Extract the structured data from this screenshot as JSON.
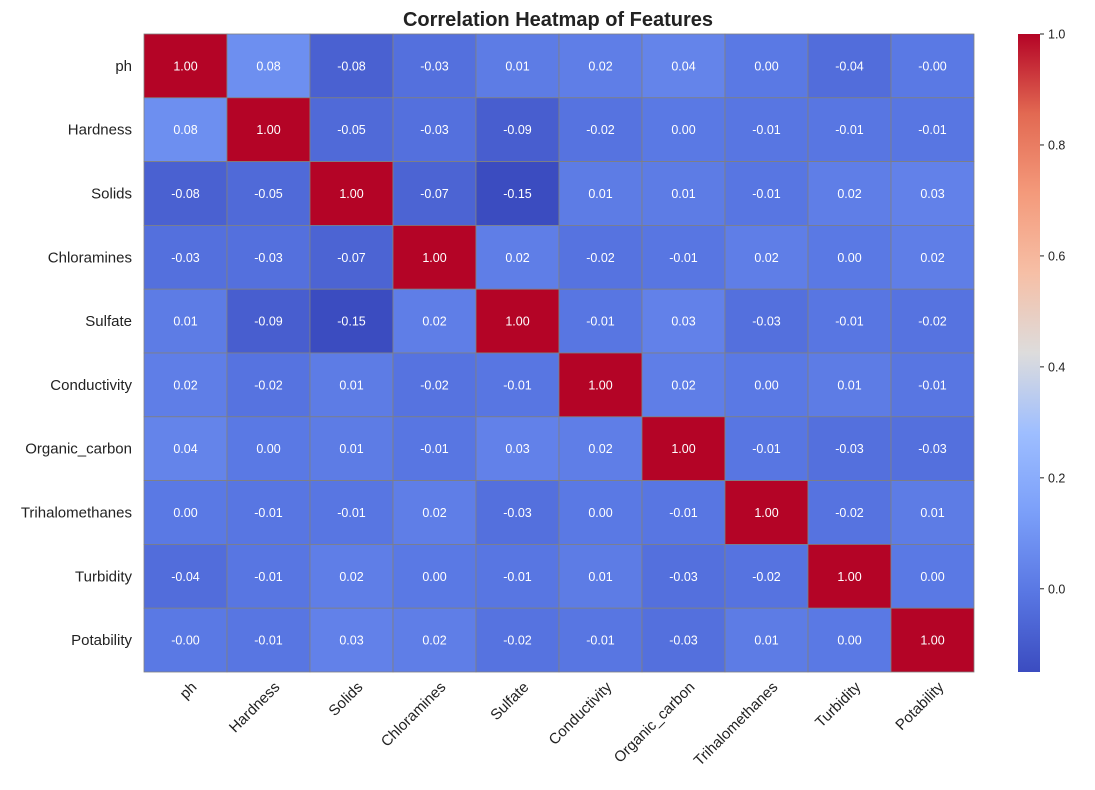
{
  "chart_data": {
    "type": "heatmap",
    "title": "Correlation Heatmap of Features",
    "rows": [
      "ph",
      "Hardness",
      "Solids",
      "Chloramines",
      "Sulfate",
      "Conductivity",
      "Organic_carbon",
      "Trihalomethanes",
      "Turbidity",
      "Potability"
    ],
    "columns": [
      "ph",
      "Hardness",
      "Solids",
      "Chloramines",
      "Sulfate",
      "Conductivity",
      "Organic_carbon",
      "Trihalomethanes",
      "Turbidity",
      "Potability"
    ],
    "values": [
      [
        1.0,
        0.08,
        -0.08,
        -0.03,
        0.01,
        0.02,
        0.04,
        0.0,
        -0.04,
        -0.0
      ],
      [
        0.08,
        1.0,
        -0.05,
        -0.03,
        -0.09,
        -0.02,
        0.0,
        -0.01,
        -0.01,
        -0.01
      ],
      [
        -0.08,
        -0.05,
        1.0,
        -0.07,
        -0.15,
        0.01,
        0.01,
        -0.01,
        0.02,
        0.03
      ],
      [
        -0.03,
        -0.03,
        -0.07,
        1.0,
        0.02,
        -0.02,
        -0.01,
        0.02,
        0.0,
        0.02
      ],
      [
        0.01,
        -0.09,
        -0.15,
        0.02,
        1.0,
        -0.01,
        0.03,
        -0.03,
        -0.01,
        -0.02
      ],
      [
        0.02,
        -0.02,
        0.01,
        -0.02,
        -0.01,
        1.0,
        0.02,
        0.0,
        0.01,
        -0.01
      ],
      [
        0.04,
        0.0,
        0.01,
        -0.01,
        0.03,
        0.02,
        1.0,
        -0.01,
        -0.03,
        -0.03
      ],
      [
        0.0,
        -0.01,
        -0.01,
        0.02,
        -0.03,
        0.0,
        -0.01,
        1.0,
        -0.02,
        0.01
      ],
      [
        -0.04,
        -0.01,
        0.02,
        0.0,
        -0.01,
        0.01,
        -0.03,
        -0.02,
        1.0,
        0.0
      ],
      [
        -0.0,
        -0.01,
        0.03,
        0.02,
        -0.02,
        -0.01,
        -0.03,
        0.01,
        0.0,
        1.0
      ]
    ],
    "value_labels": [
      [
        "1.00",
        "0.08",
        "-0.08",
        "-0.03",
        "0.01",
        "0.02",
        "0.04",
        "0.00",
        "-0.04",
        "-0.00"
      ],
      [
        "0.08",
        "1.00",
        "-0.05",
        "-0.03",
        "-0.09",
        "-0.02",
        "0.00",
        "-0.01",
        "-0.01",
        "-0.01"
      ],
      [
        "-0.08",
        "-0.05",
        "1.00",
        "-0.07",
        "-0.15",
        "0.01",
        "0.01",
        "-0.01",
        "0.02",
        "0.03"
      ],
      [
        "-0.03",
        "-0.03",
        "-0.07",
        "1.00",
        "0.02",
        "-0.02",
        "-0.01",
        "0.02",
        "0.00",
        "0.02"
      ],
      [
        "0.01",
        "-0.09",
        "-0.15",
        "0.02",
        "1.00",
        "-0.01",
        "0.03",
        "-0.03",
        "-0.01",
        "-0.02"
      ],
      [
        "0.02",
        "-0.02",
        "0.01",
        "-0.02",
        "-0.01",
        "1.00",
        "0.02",
        "0.00",
        "0.01",
        "-0.01"
      ],
      [
        "0.04",
        "0.00",
        "0.01",
        "-0.01",
        "0.03",
        "0.02",
        "1.00",
        "-0.01",
        "-0.03",
        "-0.03"
      ],
      [
        "0.00",
        "-0.01",
        "-0.01",
        "0.02",
        "-0.03",
        "0.00",
        "-0.01",
        "1.00",
        "-0.02",
        "0.01"
      ],
      [
        "-0.04",
        "-0.01",
        "0.02",
        "0.00",
        "-0.01",
        "0.01",
        "-0.03",
        "-0.02",
        "1.00",
        "0.00"
      ],
      [
        "-0.00",
        "-0.01",
        "0.03",
        "0.02",
        "-0.02",
        "-0.01",
        "-0.03",
        "0.01",
        "0.00",
        "1.00"
      ]
    ],
    "colormap": "coolwarm",
    "vmin": -0.15,
    "vmax": 1.0,
    "colorbar_ticks": [
      1.0,
      0.8,
      0.6,
      0.4,
      0.2,
      0.0
    ],
    "colorbar_tick_labels": [
      "1.0",
      "0.8",
      "0.6",
      "0.4",
      "0.2",
      "0.0"
    ],
    "colorbar_placement": "right",
    "cell_border_color": "#808080",
    "annotation_color": "#ffffff"
  }
}
